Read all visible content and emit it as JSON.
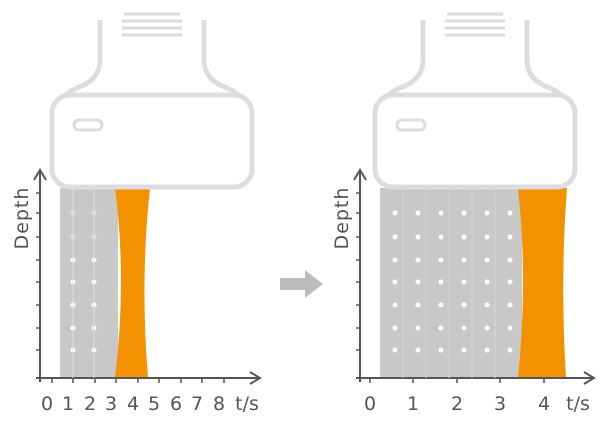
{
  "left": {
    "y_label": "Depth",
    "x_ticks": [
      "0",
      "1",
      "2",
      "3",
      "4",
      "5",
      "6",
      "7",
      "8"
    ],
    "x_unit": "t/s"
  },
  "right": {
    "y_label": "Depth",
    "x_ticks": [
      "0",
      "1",
      "2",
      "3",
      "4"
    ],
    "x_unit": "t/s"
  }
}
